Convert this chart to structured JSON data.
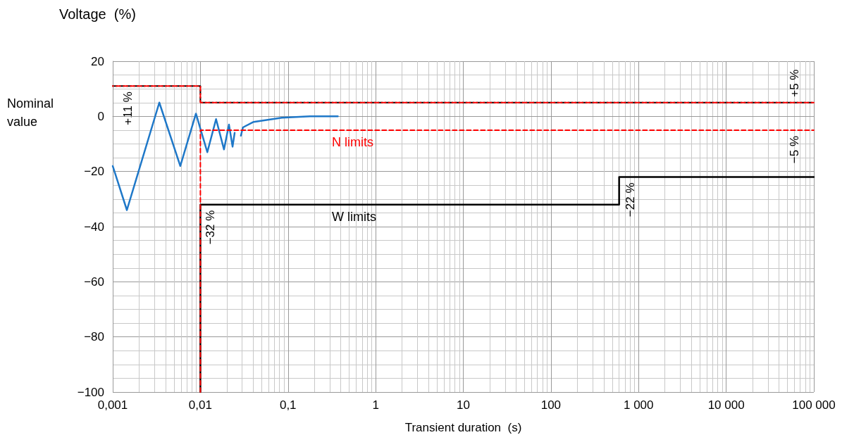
{
  "chart_data": {
    "type": "line",
    "xlabel": "Transient duration  (s)",
    "ylabel": "Voltage  (%)",
    "log": "x",
    "grid": true,
    "marker": "none",
    "xlim": [
      0.001,
      100000
    ],
    "xticks": [
      {
        "value": 0.001,
        "label": "0,001"
      },
      {
        "value": 0.01,
        "label": "0,01"
      },
      {
        "value": 0.1,
        "label": "0,1"
      },
      1,
      10,
      100,
      {
        "value": 1000,
        "label": "1 000"
      },
      {
        "value": 10000,
        "label": "10 000"
      },
      {
        "value": 100000,
        "label": "100 000"
      }
    ],
    "ylim": [
      -100,
      20
    ],
    "yticks": [
      {
        "value": -100,
        "label": "−100"
      },
      {
        "value": -80,
        "label": "−80"
      },
      {
        "value": -60,
        "label": "−60"
      },
      {
        "value": -40,
        "label": "−40"
      },
      {
        "value": -20,
        "label": "−20"
      },
      0,
      20
    ],
    "series": [
      {
        "color": "#000000",
        "line_style": "dashed",
        "x": [
          0.001,
          0.01,
          0.01,
          100000
        ],
        "values": [
          11,
          11,
          5,
          5
        ]
      },
      {
        "color": "#ff0000",
        "line_style": "dashed",
        "x": [
          0.001,
          0.01,
          0.01,
          100000
        ],
        "values": [
          11,
          11,
          5,
          5
        ]
      },
      {
        "name": "N limits",
        "color": "#ff0000",
        "line_style": "dashed",
        "x": [
          0.01,
          0.01,
          100000
        ],
        "values": [
          -100,
          -5,
          -5
        ]
      },
      {
        "name": "W limits",
        "color": "#000000",
        "line_style": "solid",
        "x": [
          0.01,
          0.01,
          600,
          600,
          100000
        ],
        "values": [
          -100,
          -32,
          -32,
          -22,
          -22
        ]
      },
      {
        "color": "#1f78c8",
        "line_style": "solid",
        "x": [
          0.001,
          0.00145,
          0.0034,
          0.0059,
          0.0089,
          0.012,
          0.0151,
          0.0186,
          0.0212,
          0.0233,
          0.0246,
          0.027,
          0.029,
          0.0306,
          0.0405,
          0.085,
          0.178,
          0.37
        ],
        "values": [
          -18,
          -34,
          5,
          -18,
          1,
          -13,
          -1,
          -12,
          -3,
          -11,
          -6,
          null,
          -7,
          -4,
          -2,
          -0.5,
          0,
          0
        ]
      }
    ],
    "annotations": [
      "Nominal value",
      {
        "text": "+11 %",
        "x": 0.0015,
        "y": 11
      },
      {
        "text": "+5 %",
        "x": 60000,
        "y": 5
      },
      {
        "text": "−5 %",
        "x": 60000,
        "y": -5
      },
      {
        "text": "−32 %",
        "x": 0.013,
        "y": -32
      },
      {
        "text": "−22 %",
        "x": 800,
        "y": -22
      }
    ]
  }
}
